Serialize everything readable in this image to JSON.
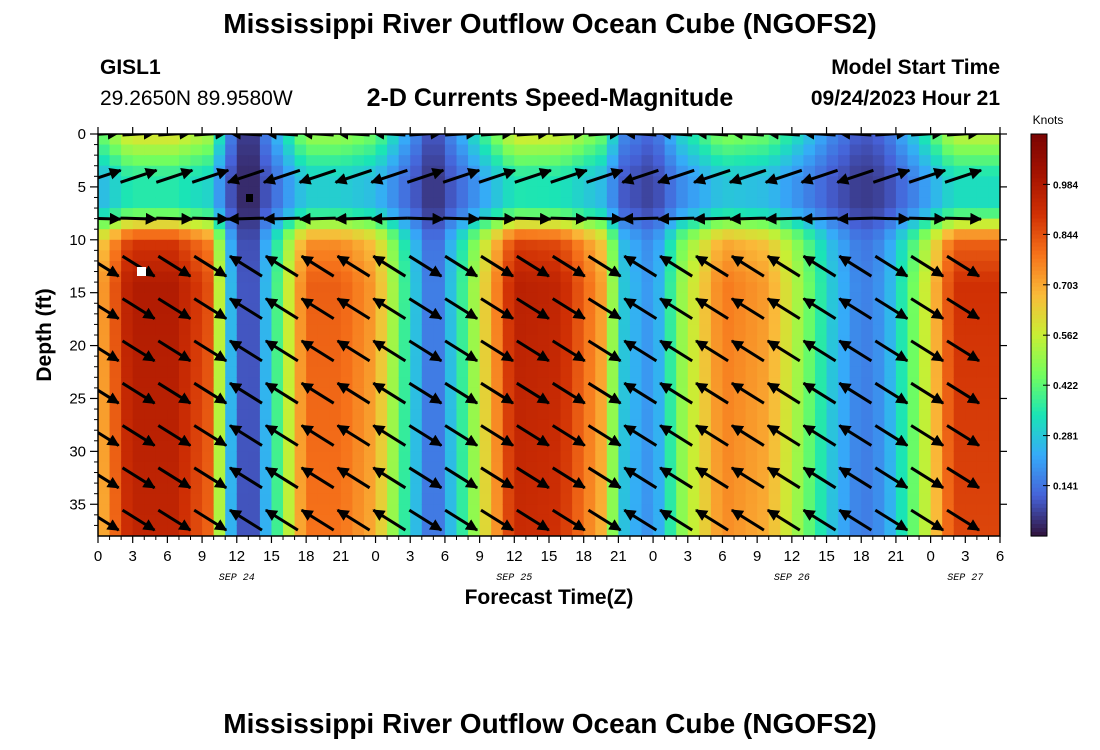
{
  "header": {
    "title": "Mississippi River Outflow Ocean Cube (NGOFS2)",
    "station_id": "GISL1",
    "station_coords": "29.2650N  89.9580W",
    "subtitle": "2-D Currents Speed-Magnitude",
    "model_start_label": "Model Start Time",
    "model_start_value": "09/24/2023 Hour 21"
  },
  "footer": {
    "title": "Mississippi River Outflow Ocean Cube (NGOFS2)"
  },
  "chart_data": {
    "type": "heatmap",
    "title": "2-D Currents Speed-Magnitude",
    "xlabel": "Forecast Time(Z)",
    "ylabel": "Depth (ft)",
    "x_range_hours": [
      0,
      78
    ],
    "y_range_ft": [
      0,
      38
    ],
    "y_inverted": true,
    "x_tick_labels": [
      "0",
      "3",
      "6",
      "9",
      "12",
      "15",
      "18",
      "21",
      "0",
      "3",
      "6",
      "9",
      "12",
      "15",
      "18",
      "21",
      "0",
      "3",
      "6",
      "9",
      "12",
      "15",
      "18",
      "21",
      "0",
      "3",
      "6"
    ],
    "y_ticks": [
      0,
      5,
      10,
      15,
      20,
      25,
      30,
      35
    ],
    "date_labels": [
      {
        "text": "SEP 24",
        "hour": 12
      },
      {
        "text": "SEP 25",
        "hour": 36
      },
      {
        "text": "SEP 26",
        "hour": 60
      },
      {
        "text": "SEP 27",
        "hour": 75
      }
    ],
    "colorbar": {
      "title": "Knots",
      "min": 0.0,
      "max": 1.125,
      "ticks": [
        "0.141",
        "0.281",
        "0.422",
        "0.562",
        "0.703",
        "0.844",
        "0.984"
      ],
      "tick_values": [
        0.141,
        0.281,
        0.422,
        0.562,
        0.703,
        0.844,
        0.984
      ]
    },
    "speed_peaks_by_hour": [
      {
        "hour": 0,
        "knots": 0.68
      },
      {
        "hour": 2.8,
        "knots": 0.98
      },
      {
        "hour": 6.5,
        "knots": 0.98
      },
      {
        "hour": 9.5,
        "knots": 0.85
      },
      {
        "hour": 11.5,
        "knots": 0.25
      },
      {
        "hour": 13,
        "knots": 0.02
      },
      {
        "hour": 15.5,
        "knots": 0.4
      },
      {
        "hour": 18,
        "knots": 0.82
      },
      {
        "hour": 21,
        "knots": 0.82
      },
      {
        "hour": 24,
        "knots": 0.72
      },
      {
        "hour": 26.5,
        "knots": 0.38
      },
      {
        "hour": 29,
        "knots": 0.1
      },
      {
        "hour": 31.5,
        "knots": 0.38
      },
      {
        "hour": 36,
        "knots": 0.96
      },
      {
        "hour": 40,
        "knots": 0.94
      },
      {
        "hour": 43.5,
        "knots": 0.72
      },
      {
        "hour": 45.5,
        "knots": 0.28
      },
      {
        "hour": 48,
        "knots": 0.18
      },
      {
        "hour": 50.5,
        "knots": 0.5
      },
      {
        "hour": 54,
        "knots": 0.78
      },
      {
        "hour": 58,
        "knots": 0.72
      },
      {
        "hour": 61,
        "knots": 0.48
      },
      {
        "hour": 63.5,
        "knots": 0.28
      },
      {
        "hour": 66,
        "knots": 0.15
      },
      {
        "hour": 68,
        "knots": 0.2
      },
      {
        "hour": 71,
        "knots": 0.5
      },
      {
        "hour": 74,
        "knots": 0.9
      },
      {
        "hour": 78,
        "knots": 0.9
      }
    ],
    "depth_profile": [
      {
        "depth_ft": 0,
        "factor": 0.62
      },
      {
        "depth_ft": 4,
        "factor": 0.36
      },
      {
        "depth_ft": 7,
        "factor": 0.36
      },
      {
        "depth_ft": 10,
        "factor": 0.9
      },
      {
        "depth_ft": 14,
        "factor": 1.0
      },
      {
        "depth_ft": 38,
        "factor": 0.96
      }
    ]
  }
}
